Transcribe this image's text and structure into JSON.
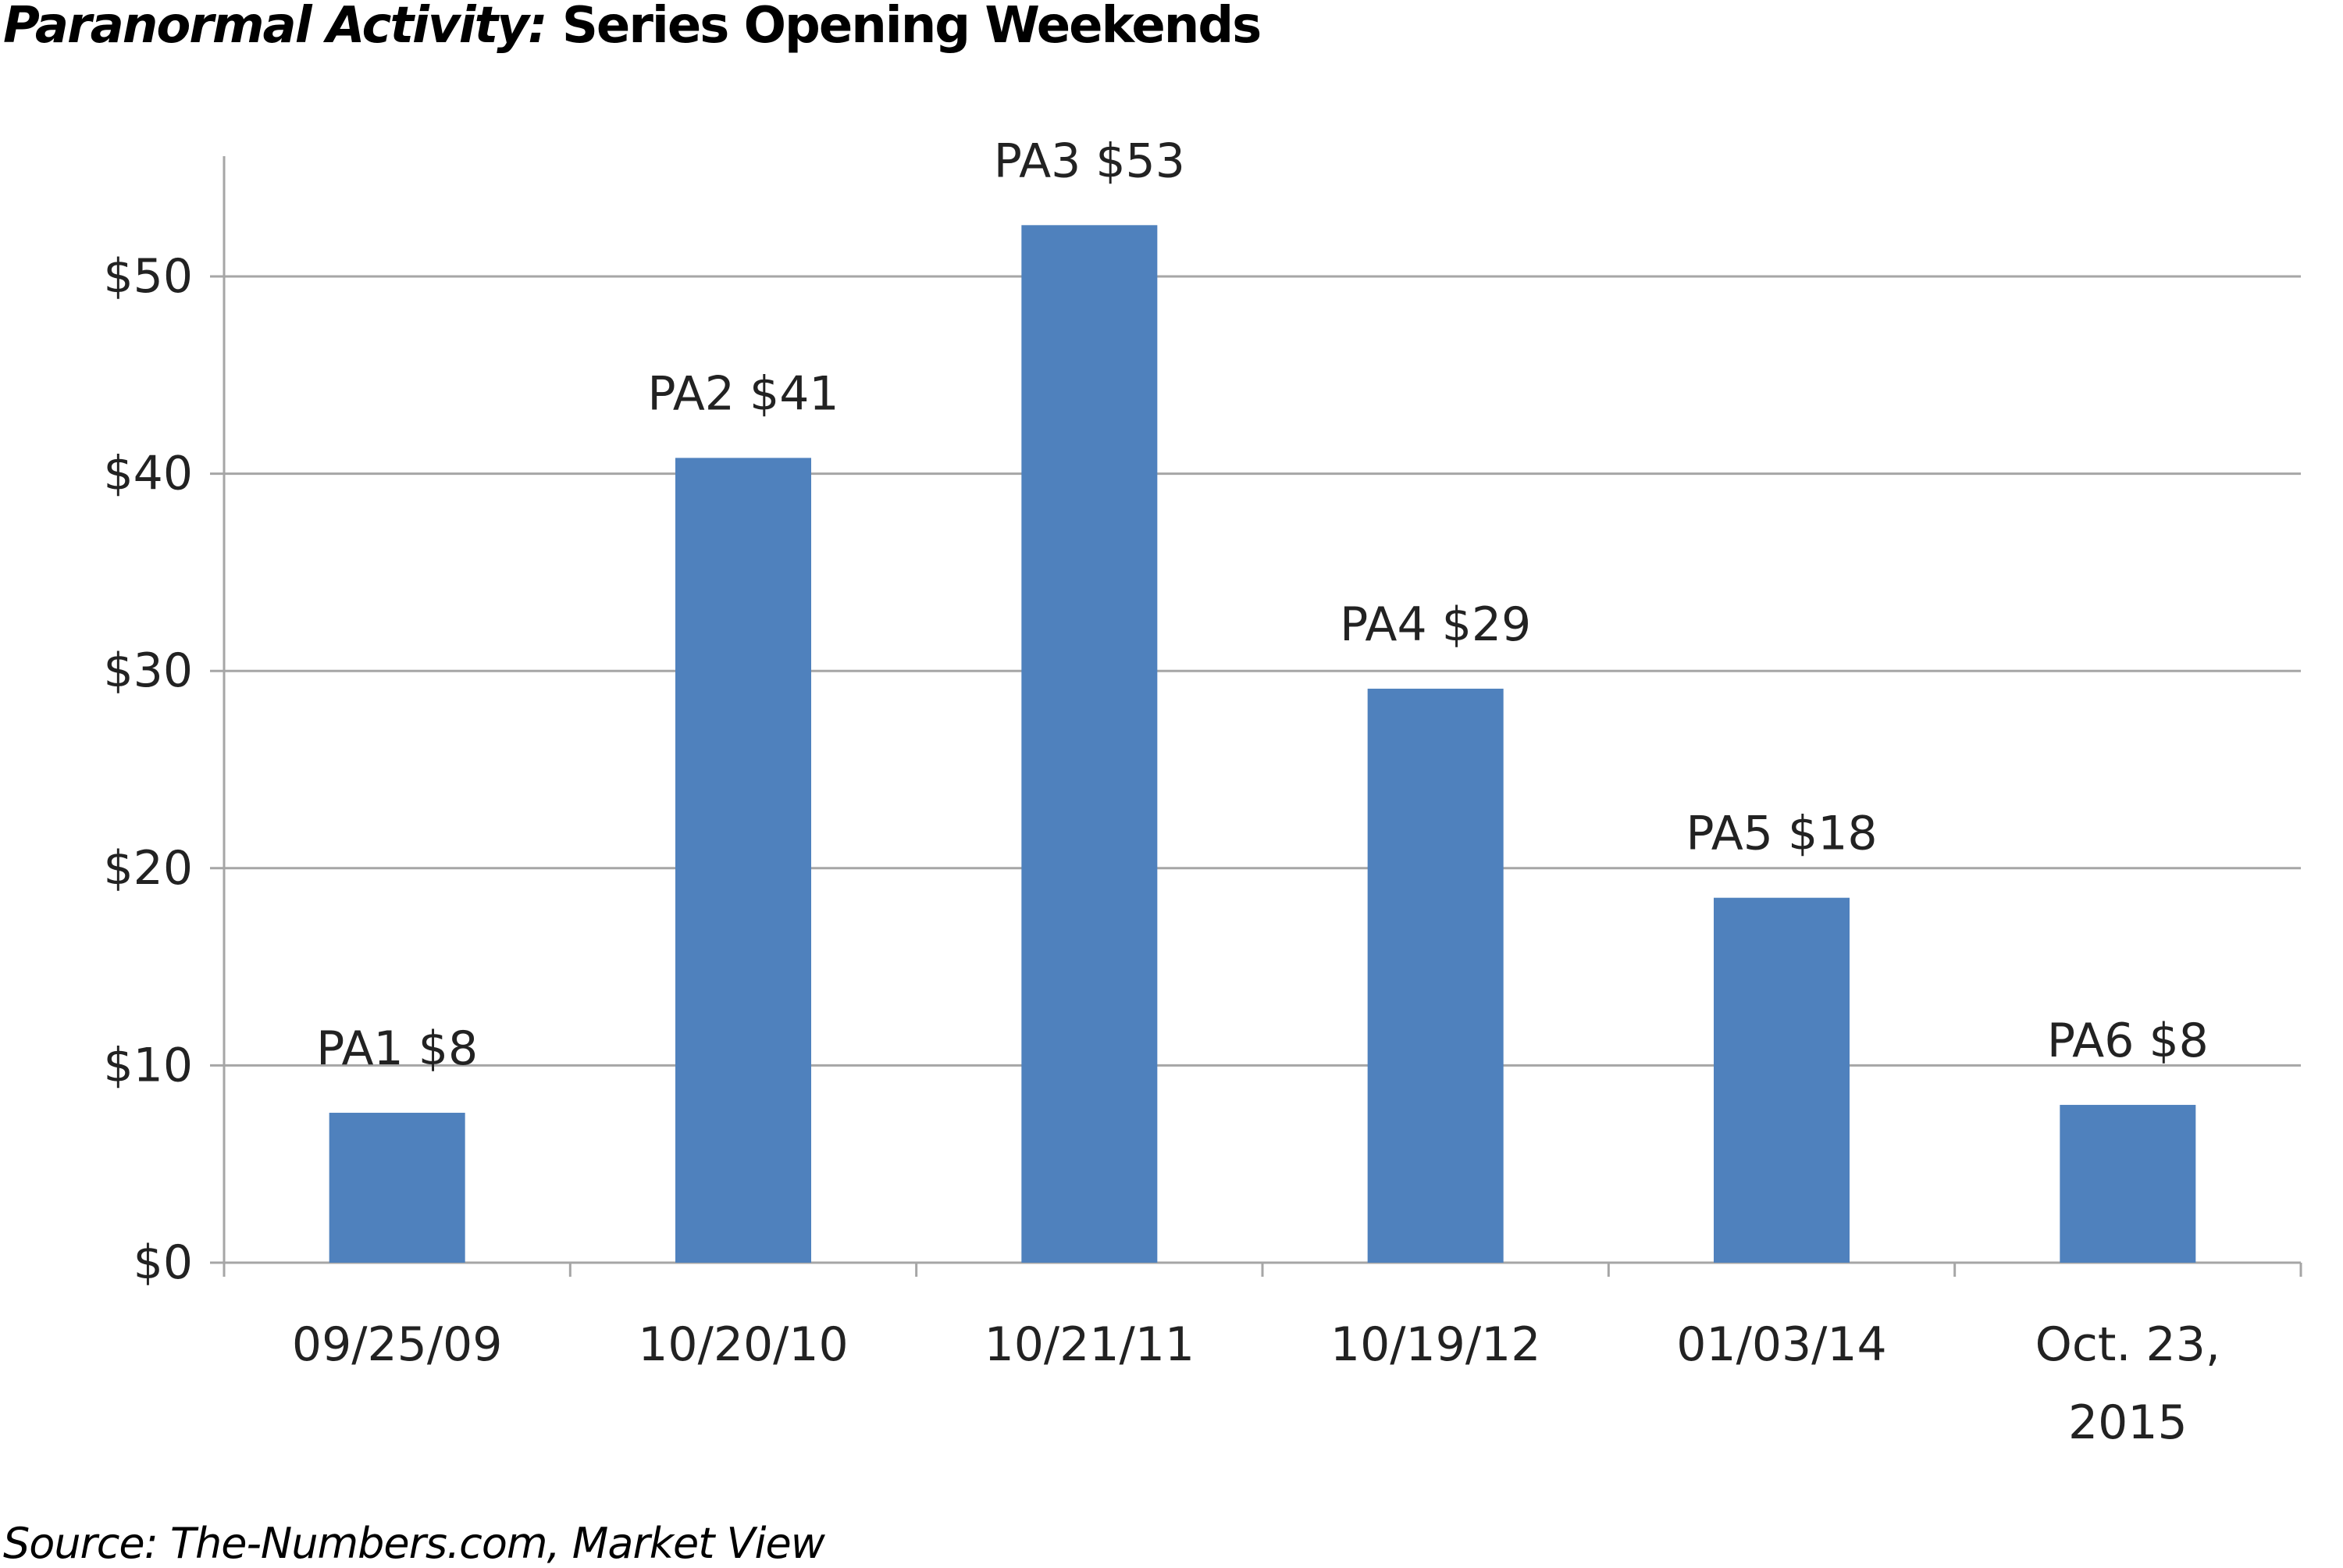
{
  "title": {
    "italic_part": "Paranormal Activity:",
    "rest": " Series Opening Weekends"
  },
  "source": "Source: The-Numbers.com, Market View",
  "chart_data": {
    "type": "bar",
    "title": "Paranormal Activity: Series Opening Weekends",
    "categories": [
      "09/25/09",
      "10/20/10",
      "10/21/11",
      "10/19/12",
      "01/03/14",
      "Oct. 23, 2015"
    ],
    "category_lines": [
      [
        "09/25/09"
      ],
      [
        "10/20/10"
      ],
      [
        "10/21/11"
      ],
      [
        "10/19/12"
      ],
      [
        "01/03/14"
      ],
      [
        "Oct. 23,",
        "2015"
      ]
    ],
    "values": [
      7.6,
      40.8,
      52.6,
      29.1,
      18.5,
      8.0
    ],
    "data_labels": [
      "PA1 $8",
      "PA2 $41",
      "PA3 $53",
      "PA4 $29",
      "PA5 $18",
      "PA6 $8"
    ],
    "yticks": [
      "$0",
      "$10",
      "$20",
      "$30",
      "$40",
      "$50"
    ],
    "ytick_values": [
      0,
      10,
      20,
      30,
      40,
      50
    ],
    "ylim": [
      0,
      56
    ],
    "xlabel": "",
    "ylabel": "",
    "grid": true,
    "legend": "none",
    "bar_color": "#4f81bd",
    "grid_color": "#a6a6a6"
  }
}
